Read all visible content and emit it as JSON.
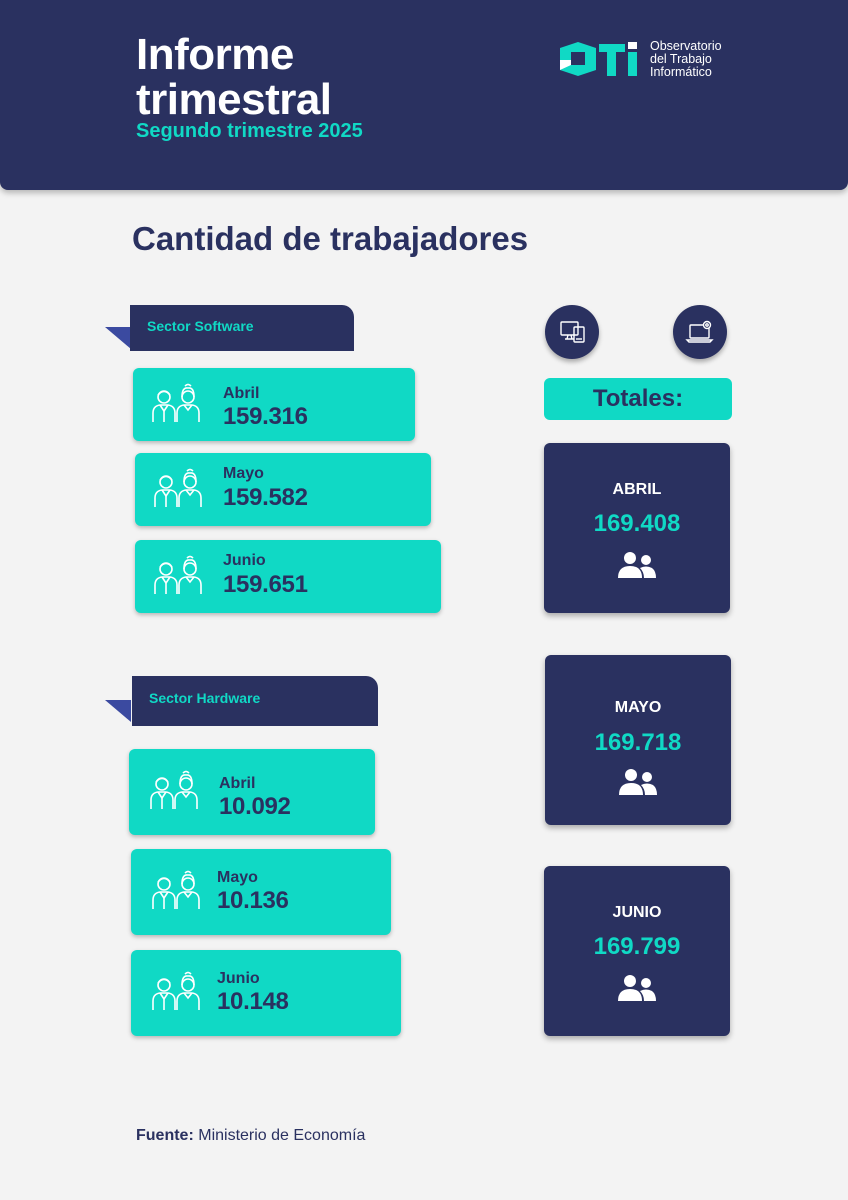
{
  "header": {
    "title_line1": "Informe",
    "title_line2": "trimestral",
    "subtitle": "Segundo trimestre 2025",
    "logo": {
      "mark": "OTI",
      "line1": "Observatorio",
      "line2": "del Trabajo",
      "line3": "Informático"
    }
  },
  "section_title": "Cantidad de trabajadores",
  "software": {
    "label": "Sector Software",
    "items": [
      {
        "month": "Abril",
        "value": "159.316"
      },
      {
        "month": "Mayo",
        "value": "159.582"
      },
      {
        "month": "Junio",
        "value": "159.651"
      }
    ]
  },
  "hardware": {
    "label": "Sector Hardware",
    "items": [
      {
        "month": "Abril",
        "value": "10.092"
      },
      {
        "month": "Mayo",
        "value": "10.136"
      },
      {
        "month": "Junio",
        "value": "10.148"
      }
    ]
  },
  "icons": {
    "software": "desktop-computer-icon",
    "hardware": "laptop-gear-icon",
    "people": "people-icon"
  },
  "totals": {
    "label": "Totales:",
    "items": [
      {
        "month": "ABRIL",
        "value": "169.408"
      },
      {
        "month": "MAYO",
        "value": "169.718"
      },
      {
        "month": "JUNIO",
        "value": "169.799"
      }
    ]
  },
  "source": {
    "label": "Fuente:",
    "value": "Ministerio de Economía"
  },
  "colors": {
    "navy": "#2a3160",
    "teal": "#10d9c5",
    "background": "#f3f3f3"
  }
}
